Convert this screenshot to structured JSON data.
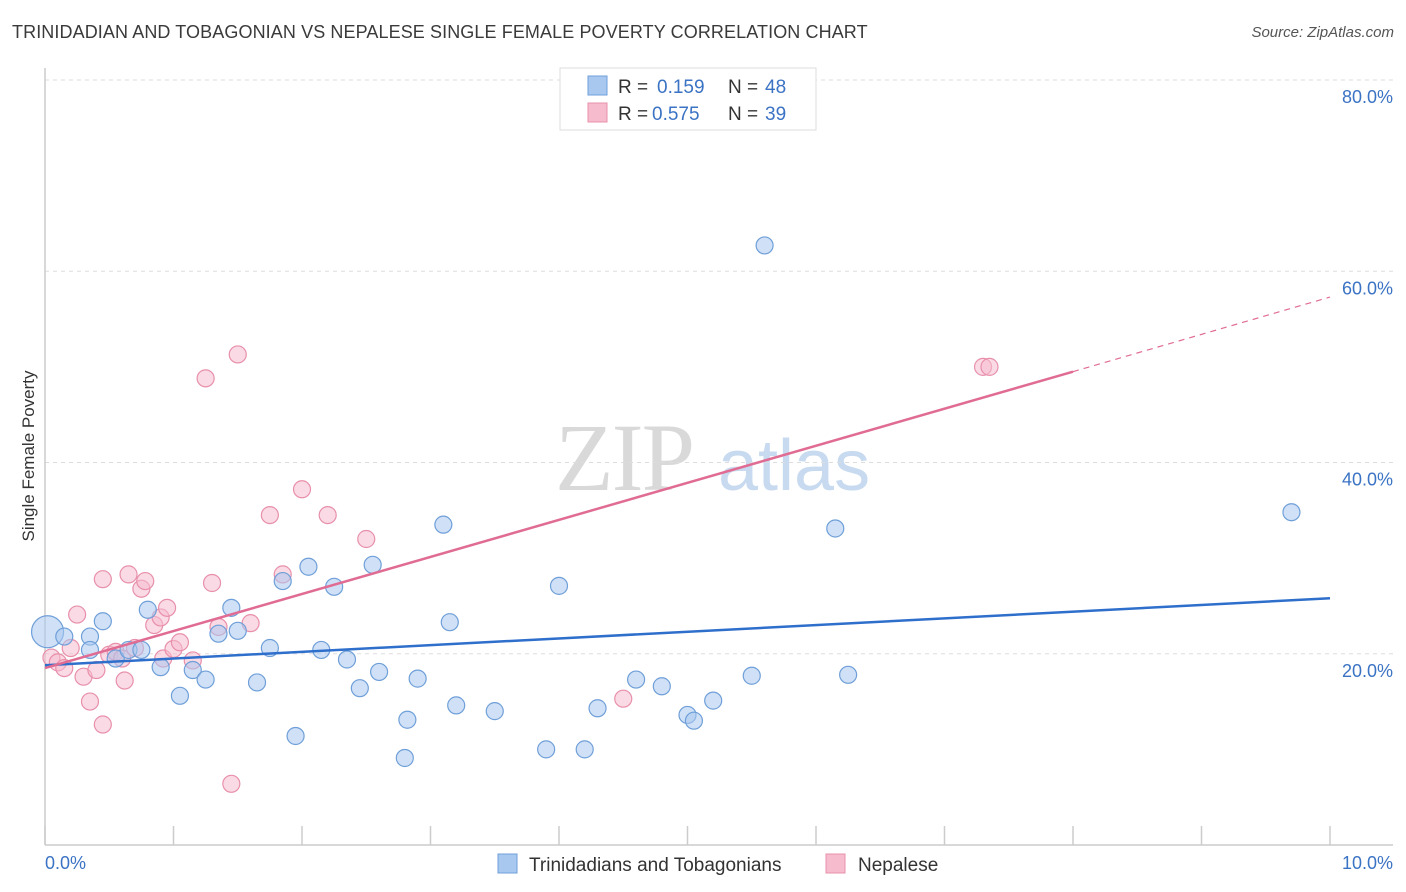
{
  "header": {
    "title": "TRINIDADIAN AND TOBAGONIAN VS NEPALESE SINGLE FEMALE POVERTY CORRELATION CHART",
    "source": "Source: ZipAtlas.com"
  },
  "watermark": {
    "zip": "ZIP",
    "atlas": "atlas"
  },
  "colors": {
    "blue_fill": "#a9c8f0",
    "blue_stroke": "#6f9fd8",
    "blue_line": "#2f6fcc",
    "pink_fill": "#f6bccd",
    "pink_stroke": "#e890ab",
    "pink_line": "#e06c93",
    "tick_text": "#3b73c4"
  },
  "legend": {
    "rows": [
      {
        "r_label": "R =",
        "r_value": "0.159",
        "n_label": "N =",
        "n_value": "48"
      },
      {
        "r_label": "R =",
        "r_value": "0.575",
        "n_label": "N =",
        "n_value": "39"
      }
    ]
  },
  "bottom_legend": {
    "items": [
      {
        "label": "Trinidadians and Tobagonians"
      },
      {
        "label": "Nepalese"
      }
    ]
  },
  "chart_data": {
    "type": "scatter",
    "title": "TRINIDADIAN AND TOBAGONIAN VS NEPALESE SINGLE FEMALE POVERTY CORRELATION CHART",
    "xlabel": "",
    "ylabel": "Single Female Poverty",
    "xlim": [
      0,
      10
    ],
    "ylim": [
      0,
      80
    ],
    "x_tick_labels": [
      "0.0%",
      "10.0%"
    ],
    "y_ticks": [
      20,
      40,
      60,
      80
    ],
    "y_tick_labels": [
      "20.0%",
      "40.0%",
      "60.0%",
      "80.0%"
    ],
    "grid": "horizontal dashed",
    "legend_position": "top-center",
    "series": [
      {
        "name": "Trinidadians and Tobagonians",
        "color": "#a9c8f0",
        "trend": {
          "x": [
            0.0,
            10.0
          ],
          "y": [
            18.8,
            25.8
          ]
        },
        "points": [
          [
            0.02,
            22.3
          ],
          [
            0.15,
            21.8
          ],
          [
            0.35,
            21.8
          ],
          [
            0.35,
            20.4
          ],
          [
            0.45,
            23.4
          ],
          [
            0.55,
            19.5
          ],
          [
            0.65,
            20.4
          ],
          [
            0.75,
            20.4
          ],
          [
            0.8,
            24.6
          ],
          [
            0.9,
            18.6
          ],
          [
            1.05,
            15.6
          ],
          [
            1.15,
            18.3
          ],
          [
            1.25,
            17.3
          ],
          [
            1.35,
            22.1
          ],
          [
            1.45,
            24.8
          ],
          [
            1.5,
            22.4
          ],
          [
            1.65,
            17.0
          ],
          [
            1.75,
            20.6
          ],
          [
            1.85,
            27.6
          ],
          [
            1.95,
            11.4
          ],
          [
            2.05,
            29.1
          ],
          [
            2.15,
            20.4
          ],
          [
            2.25,
            27.0
          ],
          [
            2.35,
            19.4
          ],
          [
            2.45,
            16.4
          ],
          [
            2.55,
            29.3
          ],
          [
            2.6,
            18.1
          ],
          [
            2.8,
            9.1
          ],
          [
            2.82,
            13.1
          ],
          [
            2.9,
            17.4
          ],
          [
            3.1,
            33.5
          ],
          [
            3.15,
            23.3
          ],
          [
            3.2,
            14.6
          ],
          [
            3.5,
            14.0
          ],
          [
            3.9,
            10.0
          ],
          [
            4.0,
            27.1
          ],
          [
            4.2,
            10.0
          ],
          [
            4.3,
            14.3
          ],
          [
            4.6,
            17.3
          ],
          [
            4.8,
            16.6
          ],
          [
            5.0,
            13.6
          ],
          [
            5.05,
            13.0
          ],
          [
            5.2,
            15.1
          ],
          [
            5.5,
            17.7
          ],
          [
            5.6,
            62.7
          ],
          [
            6.15,
            33.1
          ],
          [
            6.25,
            17.8
          ],
          [
            9.7,
            34.8
          ]
        ]
      },
      {
        "name": "Nepalese",
        "color": "#f6bccd",
        "trend": {
          "x": [
            0.0,
            8.0
          ],
          "y": [
            18.5,
            49.5
          ]
        },
        "trend_dashed": {
          "x": [
            8.0,
            10.0
          ],
          "y": [
            49.5,
            57.3
          ]
        },
        "points": [
          [
            0.05,
            19.6
          ],
          [
            0.1,
            19.1
          ],
          [
            0.15,
            18.5
          ],
          [
            0.2,
            20.6
          ],
          [
            0.25,
            24.1
          ],
          [
            0.3,
            17.6
          ],
          [
            0.35,
            15.0
          ],
          [
            0.4,
            18.3
          ],
          [
            0.45,
            12.6
          ],
          [
            0.45,
            27.8
          ],
          [
            0.5,
            19.9
          ],
          [
            0.55,
            20.2
          ],
          [
            0.6,
            19.5
          ],
          [
            0.62,
            17.2
          ],
          [
            0.65,
            28.3
          ],
          [
            0.7,
            20.6
          ],
          [
            0.75,
            26.8
          ],
          [
            0.78,
            27.6
          ],
          [
            0.85,
            23.0
          ],
          [
            0.9,
            23.8
          ],
          [
            0.92,
            19.5
          ],
          [
            0.95,
            24.8
          ],
          [
            1.0,
            20.5
          ],
          [
            1.05,
            21.2
          ],
          [
            1.15,
            19.3
          ],
          [
            1.25,
            48.8
          ],
          [
            1.3,
            27.4
          ],
          [
            1.35,
            22.8
          ],
          [
            1.45,
            6.4
          ],
          [
            1.5,
            51.3
          ],
          [
            1.6,
            23.2
          ],
          [
            1.75,
            34.5
          ],
          [
            1.85,
            28.3
          ],
          [
            2.0,
            37.2
          ],
          [
            2.2,
            34.5
          ],
          [
            2.5,
            32.0
          ],
          [
            4.5,
            15.3
          ],
          [
            7.3,
            50.0
          ],
          [
            7.35,
            50.0
          ]
        ]
      }
    ]
  }
}
